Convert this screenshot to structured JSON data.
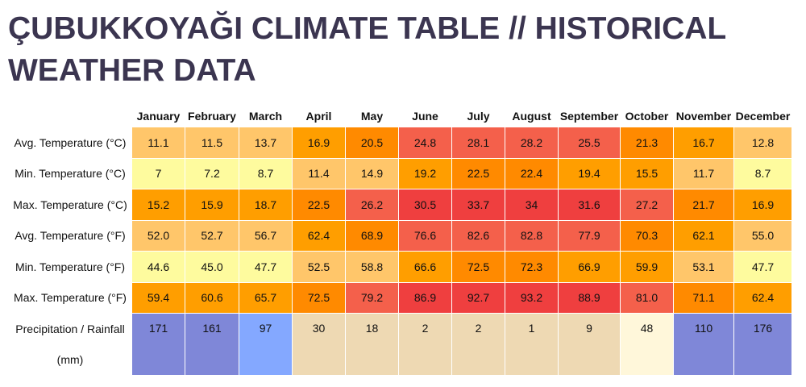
{
  "title": "ÇUBUKKOYAĞI CLIMATE TABLE // HISTORICAL WEATHER DATA",
  "months": [
    "January",
    "February",
    "March",
    "April",
    "May",
    "June",
    "July",
    "August",
    "September",
    "October",
    "November",
    "December"
  ],
  "rows": [
    {
      "label": "Avg. Temperature (°C)",
      "values": [
        "11.1",
        "11.5",
        "13.7",
        "16.9",
        "20.5",
        "24.8",
        "28.1",
        "28.2",
        "25.5",
        "21.3",
        "16.7",
        "12.8"
      ],
      "colors": [
        "#ffc66a",
        "#ffc66a",
        "#ffc66a",
        "#ff9e00",
        "#ff8a00",
        "#f4604b",
        "#f4604b",
        "#f4604b",
        "#f4604b",
        "#ff8a00",
        "#ff9e00",
        "#ffc66a"
      ]
    },
    {
      "label": "Min. Temperature (°C)",
      "values": [
        "7",
        "7.2",
        "8.7",
        "11.4",
        "14.9",
        "19.2",
        "22.5",
        "22.4",
        "19.4",
        "15.5",
        "11.7",
        "8.7"
      ],
      "colors": [
        "#fefb9e",
        "#fefb9e",
        "#fefb9e",
        "#ffc66a",
        "#ffc66a",
        "#ff9e00",
        "#ff8a00",
        "#ff8a00",
        "#ff9e00",
        "#ff9e00",
        "#ffc66a",
        "#fefb9e"
      ]
    },
    {
      "label": "Max. Temperature (°C)",
      "values": [
        "15.2",
        "15.9",
        "18.7",
        "22.5",
        "26.2",
        "30.5",
        "33.7",
        "34",
        "31.6",
        "27.2",
        "21.7",
        "16.9"
      ],
      "colors": [
        "#ff9e00",
        "#ff9e00",
        "#ff9e00",
        "#ff8a00",
        "#f4604b",
        "#ef3f3f",
        "#ef3f3f",
        "#ef3f3f",
        "#ef3f3f",
        "#f4604b",
        "#ff8a00",
        "#ff9e00"
      ]
    },
    {
      "label": "Avg. Temperature (°F)",
      "values": [
        "52.0",
        "52.7",
        "56.7",
        "62.4",
        "68.9",
        "76.6",
        "82.6",
        "82.8",
        "77.9",
        "70.3",
        "62.1",
        "55.0"
      ],
      "colors": [
        "#ffc66a",
        "#ffc66a",
        "#ffc66a",
        "#ff9e00",
        "#ff8a00",
        "#f4604b",
        "#f4604b",
        "#f4604b",
        "#f4604b",
        "#ff8a00",
        "#ff9e00",
        "#ffc66a"
      ]
    },
    {
      "label": "Min. Temperature (°F)",
      "values": [
        "44.6",
        "45.0",
        "47.7",
        "52.5",
        "58.8",
        "66.6",
        "72.5",
        "72.3",
        "66.9",
        "59.9",
        "53.1",
        "47.7"
      ],
      "colors": [
        "#fefb9e",
        "#fefb9e",
        "#fefb9e",
        "#ffc66a",
        "#ffc66a",
        "#ff9e00",
        "#ff8a00",
        "#ff8a00",
        "#ff9e00",
        "#ff9e00",
        "#ffc66a",
        "#fefb9e"
      ]
    },
    {
      "label": "Max. Temperature (°F)",
      "values": [
        "59.4",
        "60.6",
        "65.7",
        "72.5",
        "79.2",
        "86.9",
        "92.7",
        "93.2",
        "88.9",
        "81.0",
        "71.1",
        "62.4"
      ],
      "colors": [
        "#ff9e00",
        "#ff9e00",
        "#ff9e00",
        "#ff8a00",
        "#f4604b",
        "#ef3f3f",
        "#ef3f3f",
        "#ef3f3f",
        "#ef3f3f",
        "#f4604b",
        "#ff8a00",
        "#ff9e00"
      ]
    }
  ],
  "precipitation": {
    "label": "Precipitation / Rainfall (mm)",
    "values": [
      "171",
      "161",
      "97",
      "30",
      "18",
      "2",
      "2",
      "1",
      "9",
      "48",
      "110",
      "176"
    ],
    "colors": [
      "#7f87d8",
      "#7f87d8",
      "#84a8ff",
      "#eed9b3",
      "#eed9b3",
      "#eed9b3",
      "#eed9b3",
      "#eed9b3",
      "#eed9b3",
      "#fff7da",
      "#7f87d8",
      "#7f87d8"
    ]
  }
}
